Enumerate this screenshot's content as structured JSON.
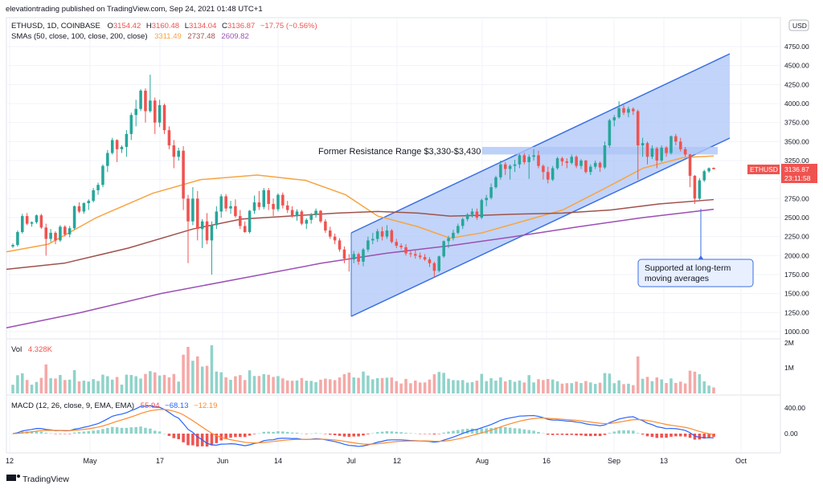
{
  "header": {
    "publisher_line": "elevationtrading published on TradingView.com, Sep 24, 2021 01:48 UTC+1",
    "symbol": "ETHUSD, 1D, COINBASE",
    "ohlc": {
      "o_label": "O",
      "o": "3154.42",
      "h_label": "H",
      "h": "3160.48",
      "l_label": "L",
      "l": "3134.04",
      "c_label": "C",
      "c": "3136.87",
      "change": "−17.75 (−0.56%)"
    },
    "sma_label": "SMAs (50, close, 100, close, 200, close)",
    "sma_values": {
      "sma50": "3311.49",
      "sma100": "2737.48",
      "sma200": "2609.82"
    },
    "currency_button": "USD"
  },
  "price_axis": {
    "ticks": [
      "4750.00",
      "4500.00",
      "4250.00",
      "4000.00",
      "3750.00",
      "3500.00",
      "3250.00",
      "3000.00",
      "2750.00",
      "2500.00",
      "2250.00",
      "2000.00",
      "1750.00",
      "1500.00",
      "1250.00",
      "1000.00"
    ],
    "last_symbol": "ETHUSD",
    "last_price": "3136.87",
    "countdown": "23:11:58"
  },
  "volume_panel": {
    "label": "Vol",
    "value": "4.328K",
    "ticks": [
      "2M",
      "1M"
    ]
  },
  "macd_panel": {
    "label": "MACD (12, 26, close, 9, EMA, EMA)",
    "hist_value": "55.94",
    "macd_value": "−68.13",
    "signal_value": "−12.19",
    "ticks": [
      "400.00",
      "0.00"
    ]
  },
  "time_axis": {
    "labels": [
      "12",
      "May",
      "17",
      "Jun",
      "14",
      "Jul",
      "12",
      "Aug",
      "16",
      "Sep",
      "13",
      "Oct"
    ]
  },
  "annotations": {
    "resistance_text": "Former Resistance Range $3,330-$3,430",
    "support_text_line1": "Supported at long-term",
    "support_text_line2": "moving averages"
  },
  "footer": {
    "brand": "TradingView"
  },
  "colors": {
    "up": "#26a69a",
    "down": "#ef5350",
    "sma50": "#f7a442",
    "sma100": "#a0524c",
    "sma200": "#9c4fb4",
    "channel_fill": "#aec6f7",
    "channel_stroke": "#3a6fe3",
    "macd": "#2962ff",
    "signal": "#ff8a2e"
  },
  "chart_data": {
    "type": "candlestick",
    "title": "ETHUSD, 1D, COINBASE",
    "ylim": [
      1000,
      5000
    ],
    "x_labels": [
      "12",
      "May",
      "17",
      "Jun",
      "14",
      "Jul",
      "12",
      "Aug",
      "16",
      "Sep",
      "13",
      "Oct"
    ],
    "candles": [
      {
        "o": 2120,
        "h": 2160,
        "l": 2100,
        "c": 2140
      },
      {
        "o": 2140,
        "h": 2330,
        "l": 2120,
        "c": 2310
      },
      {
        "o": 2310,
        "h": 2550,
        "l": 2290,
        "c": 2520
      },
      {
        "o": 2520,
        "h": 2560,
        "l": 2400,
        "c": 2420
      },
      {
        "o": 2420,
        "h": 2450,
        "l": 2380,
        "c": 2440
      },
      {
        "o": 2440,
        "h": 2540,
        "l": 2420,
        "c": 2530
      },
      {
        "o": 2530,
        "h": 2550,
        "l": 2350,
        "c": 2370
      },
      {
        "o": 2370,
        "h": 2420,
        "l": 2000,
        "c": 2220
      },
      {
        "o": 2220,
        "h": 2350,
        "l": 2180,
        "c": 2300
      },
      {
        "o": 2300,
        "h": 2320,
        "l": 2150,
        "c": 2200
      },
      {
        "o": 2200,
        "h": 2400,
        "l": 2180,
        "c": 2380
      },
      {
        "o": 2380,
        "h": 2400,
        "l": 2250,
        "c": 2280
      },
      {
        "o": 2280,
        "h": 2390,
        "l": 2240,
        "c": 2360
      },
      {
        "o": 2360,
        "h": 2660,
        "l": 2340,
        "c": 2650
      },
      {
        "o": 2650,
        "h": 2700,
        "l": 2560,
        "c": 2580
      },
      {
        "o": 2580,
        "h": 2700,
        "l": 2550,
        "c": 2690
      },
      {
        "o": 2690,
        "h": 2740,
        "l": 2600,
        "c": 2720
      },
      {
        "o": 2720,
        "h": 2890,
        "l": 2700,
        "c": 2860
      },
      {
        "o": 2860,
        "h": 2960,
        "l": 2800,
        "c": 2930
      },
      {
        "o": 2930,
        "h": 3200,
        "l": 2900,
        "c": 3180
      },
      {
        "o": 3180,
        "h": 3390,
        "l": 3100,
        "c": 3350
      },
      {
        "o": 3350,
        "h": 3550,
        "l": 3330,
        "c": 3520
      },
      {
        "o": 3520,
        "h": 3530,
        "l": 3230,
        "c": 3400
      },
      {
        "o": 3400,
        "h": 3450,
        "l": 3350,
        "c": 3430
      },
      {
        "o": 3430,
        "h": 3650,
        "l": 3300,
        "c": 3600
      },
      {
        "o": 3600,
        "h": 3880,
        "l": 3520,
        "c": 3850
      },
      {
        "o": 3850,
        "h": 4050,
        "l": 3700,
        "c": 3930
      },
      {
        "o": 3930,
        "h": 4190,
        "l": 3900,
        "c": 4170
      },
      {
        "o": 4170,
        "h": 4200,
        "l": 3750,
        "c": 3900
      },
      {
        "o": 3900,
        "h": 4380,
        "l": 3880,
        "c": 4040
      },
      {
        "o": 4040,
        "h": 4080,
        "l": 3600,
        "c": 3750
      },
      {
        "o": 3750,
        "h": 4050,
        "l": 3690,
        "c": 3980
      },
      {
        "o": 3980,
        "h": 4000,
        "l": 3600,
        "c": 3650
      },
      {
        "o": 3650,
        "h": 3700,
        "l": 3400,
        "c": 3450
      },
      {
        "o": 3450,
        "h": 3520,
        "l": 3150,
        "c": 3300
      },
      {
        "o": 3300,
        "h": 3420,
        "l": 3250,
        "c": 3380
      },
      {
        "o": 3380,
        "h": 3440,
        "l": 2600,
        "c": 2750
      },
      {
        "o": 2750,
        "h": 2800,
        "l": 1900,
        "c": 2450
      },
      {
        "o": 2450,
        "h": 2900,
        "l": 2400,
        "c": 2750
      },
      {
        "o": 2750,
        "h": 2850,
        "l": 2200,
        "c": 2350
      },
      {
        "o": 2350,
        "h": 2480,
        "l": 2100,
        "c": 2450
      },
      {
        "o": 2450,
        "h": 2560,
        "l": 2150,
        "c": 2200
      },
      {
        "o": 2200,
        "h": 2450,
        "l": 1750,
        "c": 2400
      },
      {
        "o": 2400,
        "h": 2650,
        "l": 2350,
        "c": 2580
      },
      {
        "o": 2580,
        "h": 2810,
        "l": 2500,
        "c": 2780
      },
      {
        "o": 2780,
        "h": 2810,
        "l": 2580,
        "c": 2620
      },
      {
        "o": 2620,
        "h": 2720,
        "l": 2550,
        "c": 2650
      },
      {
        "o": 2650,
        "h": 2740,
        "l": 2500,
        "c": 2520
      },
      {
        "o": 2520,
        "h": 2600,
        "l": 2350,
        "c": 2390
      },
      {
        "o": 2390,
        "h": 2450,
        "l": 2300,
        "c": 2310
      },
      {
        "o": 2310,
        "h": 2600,
        "l": 2290,
        "c": 2590
      },
      {
        "o": 2590,
        "h": 2790,
        "l": 2550,
        "c": 2700
      },
      {
        "o": 2700,
        "h": 2850,
        "l": 2600,
        "c": 2640
      },
      {
        "o": 2640,
        "h": 2890,
        "l": 2610,
        "c": 2860
      },
      {
        "o": 2860,
        "h": 2890,
        "l": 2600,
        "c": 2680
      },
      {
        "o": 2680,
        "h": 2750,
        "l": 2520,
        "c": 2610
      },
      {
        "o": 2610,
        "h": 2820,
        "l": 2580,
        "c": 2800
      },
      {
        "o": 2800,
        "h": 2830,
        "l": 2620,
        "c": 2660
      },
      {
        "o": 2660,
        "h": 2720,
        "l": 2560,
        "c": 2600
      },
      {
        "o": 2600,
        "h": 2650,
        "l": 2500,
        "c": 2520
      },
      {
        "o": 2520,
        "h": 2610,
        "l": 2460,
        "c": 2580
      },
      {
        "o": 2580,
        "h": 2600,
        "l": 2400,
        "c": 2420
      },
      {
        "o": 2420,
        "h": 2490,
        "l": 2350,
        "c": 2470
      },
      {
        "o": 2470,
        "h": 2560,
        "l": 2420,
        "c": 2540
      },
      {
        "o": 2540,
        "h": 2620,
        "l": 2500,
        "c": 2590
      },
      {
        "o": 2590,
        "h": 2600,
        "l": 2430,
        "c": 2450
      },
      {
        "o": 2450,
        "h": 2480,
        "l": 2300,
        "c": 2330
      },
      {
        "o": 2330,
        "h": 2380,
        "l": 2220,
        "c": 2250
      },
      {
        "o": 2250,
        "h": 2290,
        "l": 2150,
        "c": 2200
      },
      {
        "o": 2200,
        "h": 2230,
        "l": 2050,
        "c": 2080
      },
      {
        "o": 2080,
        "h": 2120,
        "l": 1900,
        "c": 1960
      },
      {
        "o": 1960,
        "h": 2020,
        "l": 1790,
        "c": 1950
      },
      {
        "o": 1950,
        "h": 2060,
        "l": 1900,
        "c": 2020
      },
      {
        "o": 2020,
        "h": 2040,
        "l": 1880,
        "c": 1920
      },
      {
        "o": 1920,
        "h": 2100,
        "l": 1860,
        "c": 2080
      },
      {
        "o": 2080,
        "h": 2250,
        "l": 2050,
        "c": 2200
      },
      {
        "o": 2200,
        "h": 2300,
        "l": 2150,
        "c": 2220
      },
      {
        "o": 2220,
        "h": 2350,
        "l": 2180,
        "c": 2320
      },
      {
        "o": 2320,
        "h": 2380,
        "l": 2200,
        "c": 2250
      },
      {
        "o": 2250,
        "h": 2400,
        "l": 2220,
        "c": 2330
      },
      {
        "o": 2330,
        "h": 2350,
        "l": 2160,
        "c": 2180
      },
      {
        "o": 2180,
        "h": 2220,
        "l": 2100,
        "c": 2130
      },
      {
        "o": 2130,
        "h": 2160,
        "l": 2080,
        "c": 2110
      },
      {
        "o": 2110,
        "h": 2150,
        "l": 2000,
        "c": 2030
      },
      {
        "o": 2030,
        "h": 2060,
        "l": 1980,
        "c": 2020
      },
      {
        "o": 2020,
        "h": 2080,
        "l": 1960,
        "c": 2000
      },
      {
        "o": 2000,
        "h": 2040,
        "l": 1950,
        "c": 1980
      },
      {
        "o": 1980,
        "h": 2020,
        "l": 1930,
        "c": 1950
      },
      {
        "o": 1950,
        "h": 1980,
        "l": 1850,
        "c": 1900
      },
      {
        "o": 1900,
        "h": 1920,
        "l": 1720,
        "c": 1800
      },
      {
        "o": 1800,
        "h": 2000,
        "l": 1780,
        "c": 1990
      },
      {
        "o": 1990,
        "h": 2200,
        "l": 1970,
        "c": 2190
      },
      {
        "o": 2190,
        "h": 2260,
        "l": 2100,
        "c": 2230
      },
      {
        "o": 2230,
        "h": 2340,
        "l": 2200,
        "c": 2300
      },
      {
        "o": 2300,
        "h": 2420,
        "l": 2280,
        "c": 2390
      },
      {
        "o": 2390,
        "h": 2500,
        "l": 2350,
        "c": 2480
      },
      {
        "o": 2480,
        "h": 2560,
        "l": 2450,
        "c": 2540
      },
      {
        "o": 2540,
        "h": 2620,
        "l": 2500,
        "c": 2580
      },
      {
        "o": 2580,
        "h": 2620,
        "l": 2470,
        "c": 2500
      },
      {
        "o": 2500,
        "h": 2750,
        "l": 2480,
        "c": 2730
      },
      {
        "o": 2730,
        "h": 2800,
        "l": 2650,
        "c": 2760
      },
      {
        "o": 2760,
        "h": 2950,
        "l": 2740,
        "c": 2900
      },
      {
        "o": 2900,
        "h": 3050,
        "l": 2880,
        "c": 3030
      },
      {
        "o": 3030,
        "h": 3250,
        "l": 3000,
        "c": 3200
      },
      {
        "o": 3200,
        "h": 3230,
        "l": 3060,
        "c": 3140
      },
      {
        "o": 3140,
        "h": 3200,
        "l": 3000,
        "c": 3180
      },
      {
        "o": 3180,
        "h": 3260,
        "l": 3100,
        "c": 3200
      },
      {
        "o": 3200,
        "h": 3340,
        "l": 3150,
        "c": 3320
      },
      {
        "o": 3320,
        "h": 3350,
        "l": 3200,
        "c": 3230
      },
      {
        "o": 3230,
        "h": 3330,
        "l": 3010,
        "c": 3300
      },
      {
        "o": 3300,
        "h": 3400,
        "l": 3250,
        "c": 3320
      },
      {
        "o": 3320,
        "h": 3380,
        "l": 3150,
        "c": 3180
      },
      {
        "o": 3180,
        "h": 3200,
        "l": 3000,
        "c": 3100
      },
      {
        "o": 3100,
        "h": 3170,
        "l": 2950,
        "c": 3000
      },
      {
        "o": 3000,
        "h": 3180,
        "l": 2980,
        "c": 3150
      },
      {
        "o": 3150,
        "h": 3300,
        "l": 3130,
        "c": 3280
      },
      {
        "o": 3280,
        "h": 3300,
        "l": 3180,
        "c": 3240
      },
      {
        "o": 3240,
        "h": 3280,
        "l": 3150,
        "c": 3220
      },
      {
        "o": 3220,
        "h": 3330,
        "l": 3200,
        "c": 3300
      },
      {
        "o": 3300,
        "h": 3320,
        "l": 3150,
        "c": 3180
      },
      {
        "o": 3180,
        "h": 3270,
        "l": 3140,
        "c": 3250
      },
      {
        "o": 3250,
        "h": 3260,
        "l": 3080,
        "c": 3100
      },
      {
        "o": 3100,
        "h": 3200,
        "l": 3060,
        "c": 3170
      },
      {
        "o": 3170,
        "h": 3250,
        "l": 3140,
        "c": 3220
      },
      {
        "o": 3220,
        "h": 3240,
        "l": 3100,
        "c": 3160
      },
      {
        "o": 3160,
        "h": 3500,
        "l": 3140,
        "c": 3450
      },
      {
        "o": 3450,
        "h": 3800,
        "l": 3420,
        "c": 3780
      },
      {
        "o": 3780,
        "h": 3850,
        "l": 3700,
        "c": 3820
      },
      {
        "o": 3820,
        "h": 4030,
        "l": 3800,
        "c": 3940
      },
      {
        "o": 3940,
        "h": 3980,
        "l": 3850,
        "c": 3880
      },
      {
        "o": 3880,
        "h": 3960,
        "l": 3820,
        "c": 3930
      },
      {
        "o": 3930,
        "h": 3950,
        "l": 3850,
        "c": 3900
      },
      {
        "o": 3900,
        "h": 3920,
        "l": 3000,
        "c": 3450
      },
      {
        "o": 3450,
        "h": 3550,
        "l": 3300,
        "c": 3480
      },
      {
        "o": 3480,
        "h": 3500,
        "l": 3200,
        "c": 3300
      },
      {
        "o": 3300,
        "h": 3450,
        "l": 3270,
        "c": 3410
      },
      {
        "o": 3410,
        "h": 3430,
        "l": 3150,
        "c": 3250
      },
      {
        "o": 3250,
        "h": 3450,
        "l": 3230,
        "c": 3420
      },
      {
        "o": 3420,
        "h": 3440,
        "l": 3300,
        "c": 3350
      },
      {
        "o": 3350,
        "h": 3580,
        "l": 3330,
        "c": 3570
      },
      {
        "o": 3570,
        "h": 3600,
        "l": 3450,
        "c": 3500
      },
      {
        "o": 3500,
        "h": 3550,
        "l": 3370,
        "c": 3400
      },
      {
        "o": 3400,
        "h": 3430,
        "l": 3300,
        "c": 3330
      },
      {
        "o": 3330,
        "h": 3340,
        "l": 2900,
        "c": 3050
      },
      {
        "o": 3050,
        "h": 3060,
        "l": 2680,
        "c": 2750
      },
      {
        "o": 2750,
        "h": 3020,
        "l": 2730,
        "c": 2990
      },
      {
        "o": 2990,
        "h": 3130,
        "l": 2970,
        "c": 3110
      },
      {
        "o": 3110,
        "h": 3160,
        "l": 3090,
        "c": 3150
      },
      {
        "o": 3154.42,
        "h": 3160.48,
        "l": 3134.04,
        "c": 3136.87
      }
    ]
  }
}
